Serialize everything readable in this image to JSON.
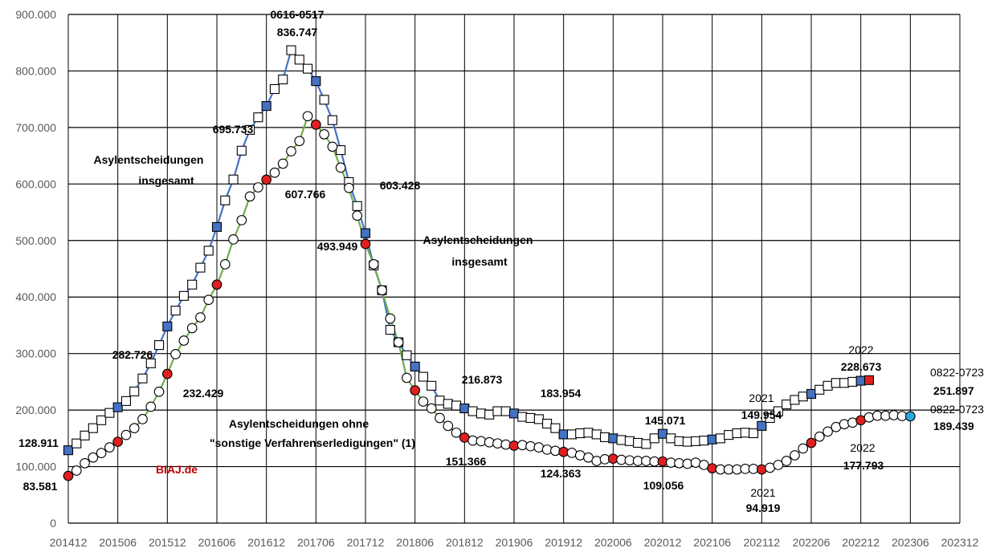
{
  "chart_data": {
    "type": "line",
    "x_ticks": [
      "201412",
      "201506",
      "201512",
      "201606",
      "201612",
      "201706",
      "201712",
      "201806",
      "201812",
      "201906",
      "201912",
      "202006",
      "202012",
      "202106",
      "202112",
      "202206",
      "202212",
      "202306",
      "202312"
    ],
    "ylim": [
      0,
      900000
    ],
    "y_ticks": [
      "0",
      "100.000",
      "200.000",
      "300.000",
      "400.000",
      "500.000",
      "600.000",
      "700.000",
      "800.000",
      "900.000"
    ],
    "grid": true,
    "series": [
      {
        "key": "total",
        "line_color": "#4472c4",
        "highlight_color": "#4472c4",
        "marker": "square",
        "values": [
          128911,
          141000,
          155000,
          168000,
          182000,
          195000,
          205000,
          216000,
          233000,
          256000,
          282726,
          315000,
          348000,
          376000,
          402000,
          422000,
          452000,
          482000,
          524000,
          571000,
          608000,
          659000,
          695733,
          718000,
          738000,
          768000,
          785000,
          836747,
          820000,
          804000,
          782000,
          749000,
          713000,
          660000,
          603428,
          561000,
          513000,
          456000,
          412000,
          342000,
          320000,
          297000,
          277000,
          259000,
          243000,
          216873,
          211000,
          208000,
          203000,
          198000,
          194000,
          192000,
          198000,
          198000,
          194000,
          188000,
          186000,
          183954,
          176000,
          168000,
          157000,
          157000,
          159000,
          160000,
          157000,
          152000,
          150000,
          147000,
          145071,
          142000,
          140000,
          150000,
          158000,
          150000,
          145000,
          144000,
          145000,
          146000,
          148000,
          149954,
          156000,
          159000,
          160000,
          159000,
          172000,
          186000,
          198000,
          210000,
          218000,
          224000,
          228673,
          236000,
          243000,
          248000,
          248000,
          250000,
          251897,
          253000
        ],
        "highlight_every": 6,
        "end_color": "#e02020"
      },
      {
        "key": "ohne",
        "line_color": "#70ad47",
        "highlight_color": "#e02020",
        "marker": "circle",
        "values": [
          83581,
          93000,
          106000,
          116000,
          124000,
          134000,
          144000,
          156000,
          168000,
          184000,
          206000,
          232429,
          264000,
          299000,
          323000,
          345000,
          364000,
          395000,
          422000,
          458000,
          502000,
          536000,
          578000,
          594000,
          607766,
          620000,
          636000,
          658000,
          676000,
          720000,
          705000,
          688000,
          666000,
          629000,
          593000,
          544000,
          493949,
          458000,
          412000,
          362000,
          320000,
          257000,
          235000,
          215000,
          203000,
          186000,
          172000,
          160000,
          151366,
          146000,
          145000,
          143000,
          141000,
          139000,
          137000,
          138000,
          136000,
          134000,
          130000,
          128000,
          126000,
          124363,
          120000,
          116000,
          110000,
          113000,
          114000,
          112000,
          111000,
          110000,
          110000,
          109000,
          109056,
          107000,
          106000,
          105000,
          107000,
          103000,
          97000,
          95000,
          95000,
          95000,
          96000,
          96000,
          94919,
          98000,
          103000,
          110000,
          120000,
          132000,
          142000,
          153000,
          162000,
          170000,
          175000,
          177793,
          182000,
          187000,
          190000,
          190000,
          191000,
          189439,
          189000
        ],
        "highlight_every": 6,
        "end_color": "#29a8e0"
      }
    ],
    "annotations": [
      {
        "text": "0616-0517",
        "bold": true
      },
      {
        "text": "836.747",
        "bold": true
      },
      {
        "text": "695.733",
        "bold": true
      },
      {
        "text": "603.428",
        "bold": true
      },
      {
        "text": "607.766",
        "bold": true
      },
      {
        "text": "493.949",
        "bold": true
      },
      {
        "text": "282.726",
        "bold": true
      },
      {
        "text": "232.429",
        "bold": true
      },
      {
        "text": "128.911",
        "bold": true
      },
      {
        "text": "83.581",
        "bold": true
      },
      {
        "text": "216.873",
        "bold": true
      },
      {
        "text": "151.366",
        "bold": true
      },
      {
        "text": "183.954",
        "bold": true
      },
      {
        "text": "124.363",
        "bold": true
      },
      {
        "text": "145.071",
        "bold": true
      },
      {
        "text": "109.056",
        "bold": true
      },
      {
        "text": "2021",
        "bold": false
      },
      {
        "text": "149.954",
        "bold": true
      },
      {
        "text": "2021",
        "bold": false
      },
      {
        "text": "94.919",
        "bold": true
      },
      {
        "text": "2022",
        "bold": false
      },
      {
        "text": "228.673",
        "bold": true
      },
      {
        "text": "2022",
        "bold": false
      },
      {
        "text": "177.793",
        "bold": true
      },
      {
        "text": "0822-0723",
        "bold": false
      },
      {
        "text": "251.897",
        "bold": true
      },
      {
        "text": "0822-0723",
        "bold": false
      },
      {
        "text": "189.439",
        "bold": true
      },
      {
        "text": "Asylentscheidungen",
        "bold": true
      },
      {
        "text": "insgesamt",
        "bold": true
      },
      {
        "text": "Asylentscheidungen",
        "bold": true
      },
      {
        "text": "insgesamt",
        "bold": true
      },
      {
        "text": "Asylentscheidungen ohne",
        "bold": true
      },
      {
        "text": "\"sonstige Verfahrenserledigungen\" (1)",
        "bold": true
      },
      {
        "text": "BIAJ.de",
        "bold": true,
        "color": "#c00000"
      }
    ]
  }
}
